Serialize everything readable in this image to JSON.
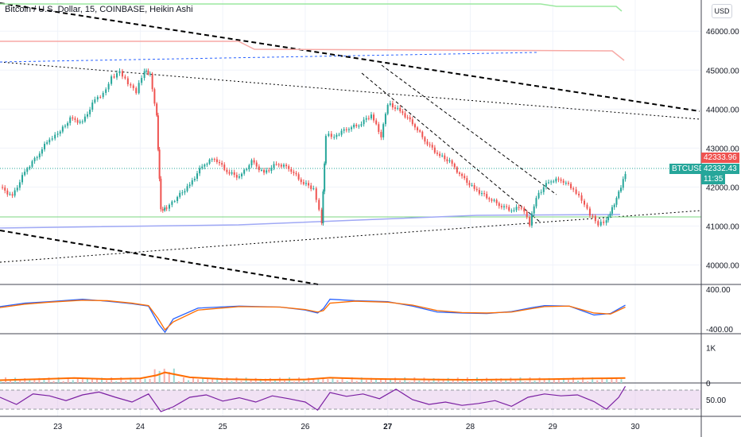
{
  "title": "Bitcoin / U.S. Dollar, 15, COINBASE, Heikin Ashi",
  "currency": "USD",
  "ticker_tag": "BTCUSD",
  "price_tags": {
    "top": "42333.96",
    "bottom": "42332.43",
    "countdown": "11:35"
  },
  "colors": {
    "up": "#26a69a",
    "down": "#ef5350",
    "macd": "#2962ff",
    "signal": "#ff6d00",
    "rsi": "#7b1fa2",
    "volma": "#ff6d00"
  },
  "chart_data": [
    {
      "type": "line",
      "title": "Bitcoin / U.S. Dollar, 15, COINBASE, Heikin Ashi",
      "ylim": [
        39500,
        46800
      ],
      "yticks": [
        40000,
        41000,
        42000,
        43000,
        44000,
        45000,
        46000
      ],
      "ytick_labels": [
        "40000.00",
        "41000.00",
        "42000.00",
        "43000.00",
        "44000.00",
        "45000.00",
        "46000.00"
      ],
      "xlim": [
        22.3,
        30.8
      ],
      "xticks": [
        23,
        24,
        25,
        26,
        27,
        28,
        29,
        30
      ],
      "xtick_labels": [
        "23",
        "24",
        "25",
        "26",
        "27",
        "28",
        "29",
        "30"
      ],
      "grid": true,
      "series": [
        {
          "x": [
            22.3,
            22.45,
            22.6,
            22.75,
            22.9,
            23.0,
            23.15,
            23.3,
            23.45,
            23.55,
            23.65,
            23.75,
            23.85,
            23.95,
            24.05,
            24.12,
            24.2,
            24.25,
            24.32,
            24.45,
            24.6,
            24.75,
            24.9,
            25.05,
            25.2,
            25.35,
            25.5,
            25.65,
            25.8,
            25.95,
            26.1,
            26.2,
            26.25,
            26.35,
            26.5,
            26.65,
            26.8,
            26.92,
            27.0,
            27.15,
            27.3,
            27.45,
            27.6,
            27.75,
            27.9,
            28.05,
            28.2,
            28.35,
            28.5,
            28.62,
            28.72,
            28.8,
            28.95,
            29.1,
            29.25,
            29.35,
            29.45,
            29.55,
            29.65,
            29.72,
            29.8,
            29.88
          ],
          "values": [
            42000,
            41750,
            42400,
            42800,
            43250,
            43350,
            43750,
            43650,
            44250,
            44400,
            44800,
            44950,
            44650,
            44450,
            45000,
            44900,
            43800,
            41400,
            41450,
            41750,
            42050,
            42550,
            42750,
            42400,
            42250,
            42650,
            42350,
            42600,
            42500,
            42150,
            41950,
            41100,
            43350,
            43300,
            43500,
            43600,
            43850,
            43300,
            44150,
            43950,
            43650,
            43200,
            42850,
            42650,
            42250,
            41950,
            41750,
            41550,
            41400,
            41500,
            41050,
            41750,
            42150,
            42200,
            41950,
            41650,
            41300,
            41050,
            41150,
            41450,
            41850,
            42330
          ]
        }
      ]
    },
    {
      "type": "line",
      "ylim": [
        -500,
        500
      ],
      "yticks": [
        400,
        -400
      ],
      "ytick_labels": [
        "400.00",
        "-400.00"
      ],
      "series": [
        {
          "x": [
            22.3,
            22.6,
            22.9,
            23.3,
            23.6,
            23.9,
            24.1,
            24.22,
            24.3,
            24.4,
            24.7,
            25.2,
            25.7,
            26.0,
            26.15,
            26.22,
            26.3,
            26.6,
            27.0,
            27.3,
            27.6,
            27.9,
            28.2,
            28.5,
            28.75,
            28.9,
            29.2,
            29.5,
            29.7,
            29.88
          ],
          "values": [
            50,
            120,
            150,
            200,
            160,
            110,
            60,
            -300,
            -470,
            -200,
            20,
            60,
            40,
            -20,
            -80,
            10,
            200,
            170,
            150,
            60,
            -60,
            -80,
            -90,
            -50,
            30,
            70,
            60,
            -120,
            -90,
            80
          ]
        },
        {
          "x": [
            22.3,
            22.6,
            22.9,
            23.3,
            23.6,
            23.9,
            24.1,
            24.22,
            24.3,
            24.4,
            24.7,
            25.2,
            25.7,
            26.0,
            26.15,
            26.22,
            26.3,
            26.6,
            27.0,
            27.3,
            27.6,
            27.9,
            28.2,
            28.5,
            28.75,
            28.9,
            29.2,
            29.5,
            29.7,
            29.88
          ],
          "values": [
            30,
            100,
            140,
            180,
            170,
            120,
            70,
            -200,
            -420,
            -260,
            -20,
            50,
            40,
            -10,
            -60,
            -30,
            120,
            160,
            140,
            80,
            -30,
            -70,
            -80,
            -60,
            10,
            50,
            60,
            -80,
            -100,
            40
          ]
        }
      ]
    },
    {
      "type": "line",
      "yticks": [
        1000,
        0
      ],
      "ytick_labels": [
        "1K",
        "0"
      ],
      "ylim": [
        0,
        1400
      ],
      "series": [
        {
          "x": [
            22.3,
            22.8,
            23.2,
            23.6,
            24.0,
            24.2,
            24.3,
            24.6,
            25.0,
            25.5,
            26.0,
            26.3,
            26.7,
            27.0,
            27.5,
            28.0,
            28.5,
            29.0,
            29.5,
            29.88
          ],
          "values": [
            80,
            110,
            140,
            110,
            130,
            220,
            300,
            160,
            110,
            90,
            100,
            150,
            120,
            110,
            100,
            90,
            100,
            110,
            130,
            140
          ]
        }
      ]
    },
    {
      "type": "line",
      "yticks": [
        50
      ],
      "ytick_labels": [
        "50.00"
      ],
      "ylim": [
        15,
        85
      ],
      "series": [
        {
          "x": [
            22.3,
            22.5,
            22.7,
            22.9,
            23.1,
            23.3,
            23.5,
            23.7,
            23.9,
            24.1,
            24.25,
            24.4,
            24.6,
            24.8,
            25.0,
            25.2,
            25.4,
            25.6,
            25.8,
            26.0,
            26.15,
            26.3,
            26.5,
            26.7,
            26.9,
            27.1,
            27.3,
            27.5,
            27.7,
            27.9,
            28.1,
            28.3,
            28.5,
            28.7,
            28.9,
            29.1,
            29.3,
            29.5,
            29.65,
            29.8,
            29.88
          ],
          "values": [
            55,
            40,
            62,
            58,
            48,
            60,
            66,
            55,
            45,
            62,
            25,
            35,
            55,
            60,
            47,
            54,
            45,
            58,
            52,
            45,
            28,
            65,
            57,
            62,
            52,
            72,
            50,
            40,
            45,
            38,
            42,
            48,
            36,
            55,
            62,
            58,
            60,
            46,
            30,
            55,
            78
          ]
        }
      ]
    }
  ]
}
